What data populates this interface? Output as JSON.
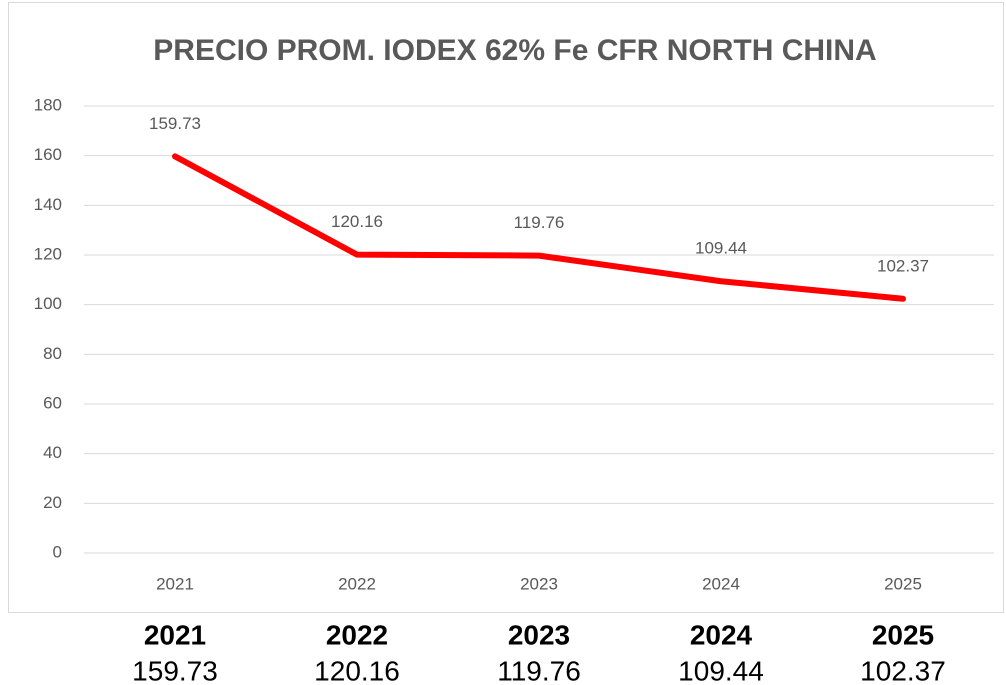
{
  "chart_data": {
    "type": "line",
    "title": "PRECIO PROM. IODEX 62% Fe CFR NORTH CHINA",
    "categories": [
      "2021",
      "2022",
      "2023",
      "2024",
      "2025"
    ],
    "values": [
      159.73,
      120.16,
      119.76,
      109.44,
      102.37
    ],
    "color": "#ff0000",
    "ylim": [
      0,
      180
    ],
    "yticks": [
      0,
      20,
      40,
      60,
      80,
      100,
      120,
      140,
      160,
      180
    ],
    "grid": true
  }
}
